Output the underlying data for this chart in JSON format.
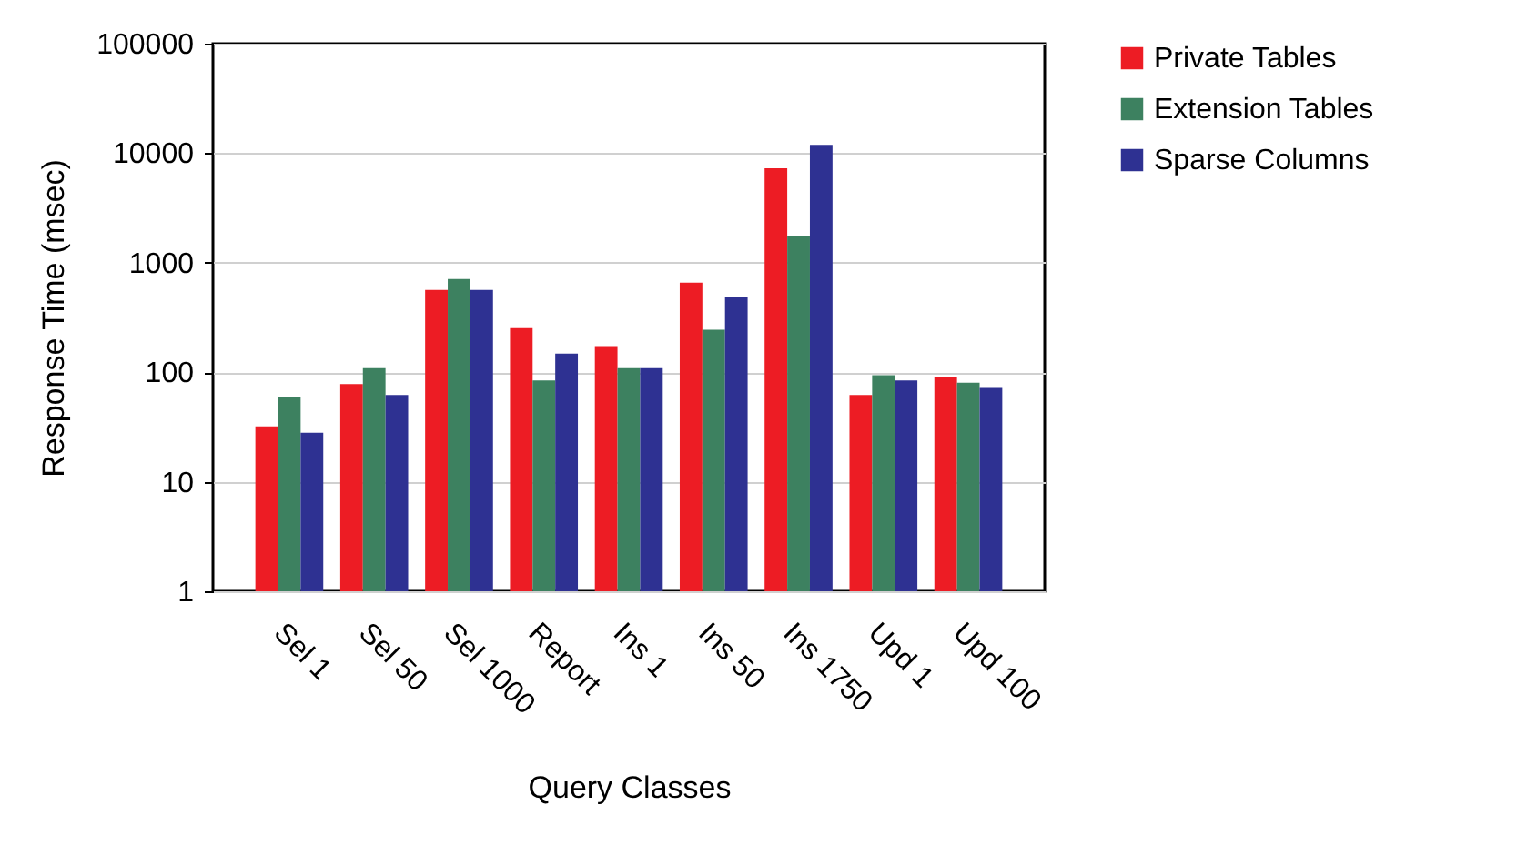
{
  "chart_data": {
    "type": "bar",
    "xlabel": "Query Classes",
    "ylabel": "Response Time (msec)",
    "categories": [
      "Sel 1",
      "Sel 50",
      "Sel 1000",
      "Report",
      "Ins 1",
      "Ins 50",
      "Ins 1750",
      "Upd 1",
      "Upd 100"
    ],
    "series": [
      {
        "name": "Private Tables",
        "color": "#ed1c24",
        "values": [
          32,
          78,
          564,
          253,
          173,
          657,
          7270,
          62,
          90
        ]
      },
      {
        "name": "Extension Tables",
        "color": "#3d8160",
        "values": [
          59,
          109,
          710,
          84,
          109,
          244,
          1770,
          94,
          80
        ]
      },
      {
        "name": "Sparse Columns",
        "color": "#2e3192",
        "values": [
          28,
          62,
          564,
          148,
          109,
          484,
          11900,
          84,
          72
        ]
      }
    ],
    "log": true,
    "ylim": [
      1,
      100000
    ],
    "yticks": [
      1,
      10,
      100,
      1000,
      10000,
      100000
    ],
    "grid": "y",
    "legend": "right"
  }
}
